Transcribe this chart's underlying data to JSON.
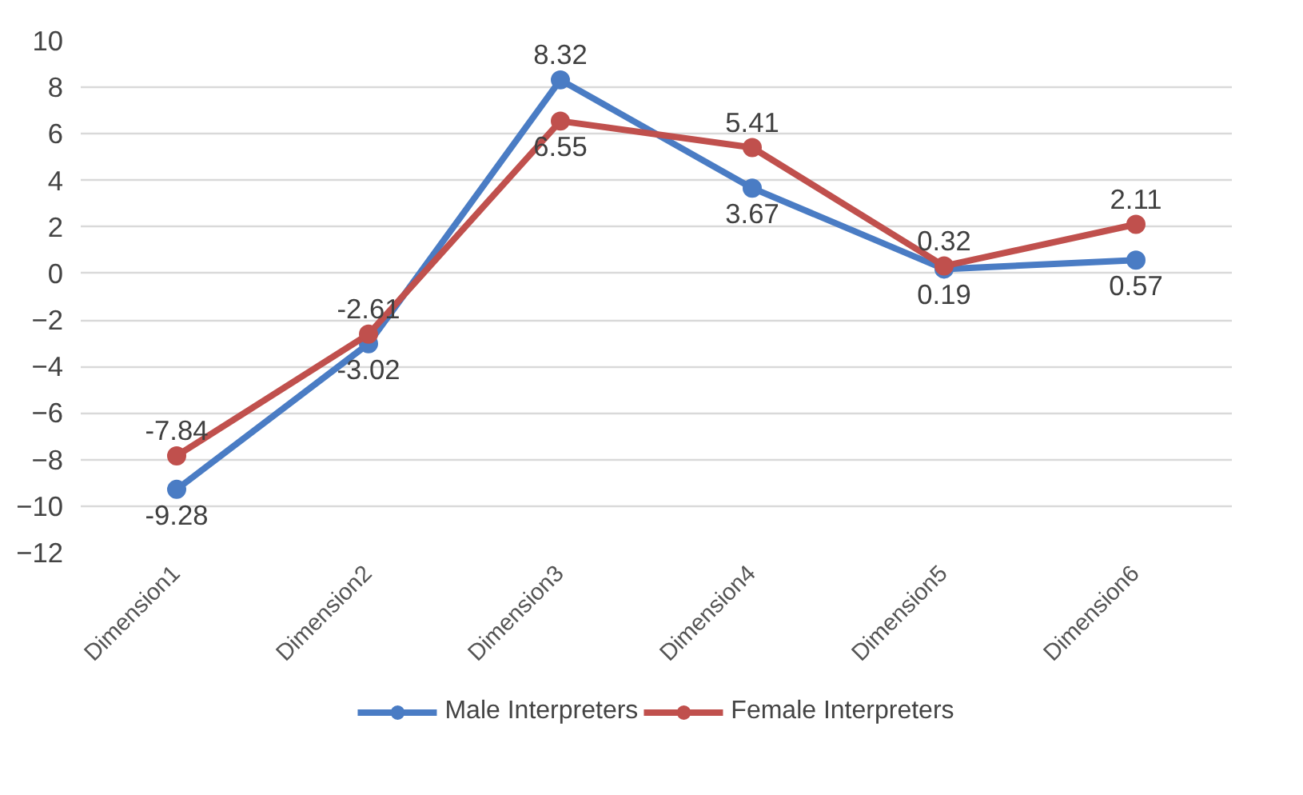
{
  "chart_data": {
    "type": "line",
    "categories": [
      "Dimension1",
      "Dimension2",
      "Dimension3",
      "Dimension4",
      "Dimension5",
      "Dimension6"
    ],
    "series": [
      {
        "name": "Male Interpreters",
        "color": "#4a7cc4",
        "values": [
          -9.28,
          -3.02,
          8.32,
          3.67,
          0.19,
          0.57
        ]
      },
      {
        "name": "Female Interpreters",
        "color": "#c0504d",
        "values": [
          -7.84,
          -2.61,
          6.55,
          5.41,
          0.32,
          2.11
        ]
      }
    ],
    "ylim": [
      -12,
      10
    ],
    "yticks": [
      -12,
      -10,
      -8,
      -6,
      -4,
      -2,
      0,
      2,
      4,
      6,
      8,
      10
    ],
    "grid": "y",
    "legend": "bottom",
    "marker": "circle",
    "line_style": "solid",
    "data_labels": true
  }
}
